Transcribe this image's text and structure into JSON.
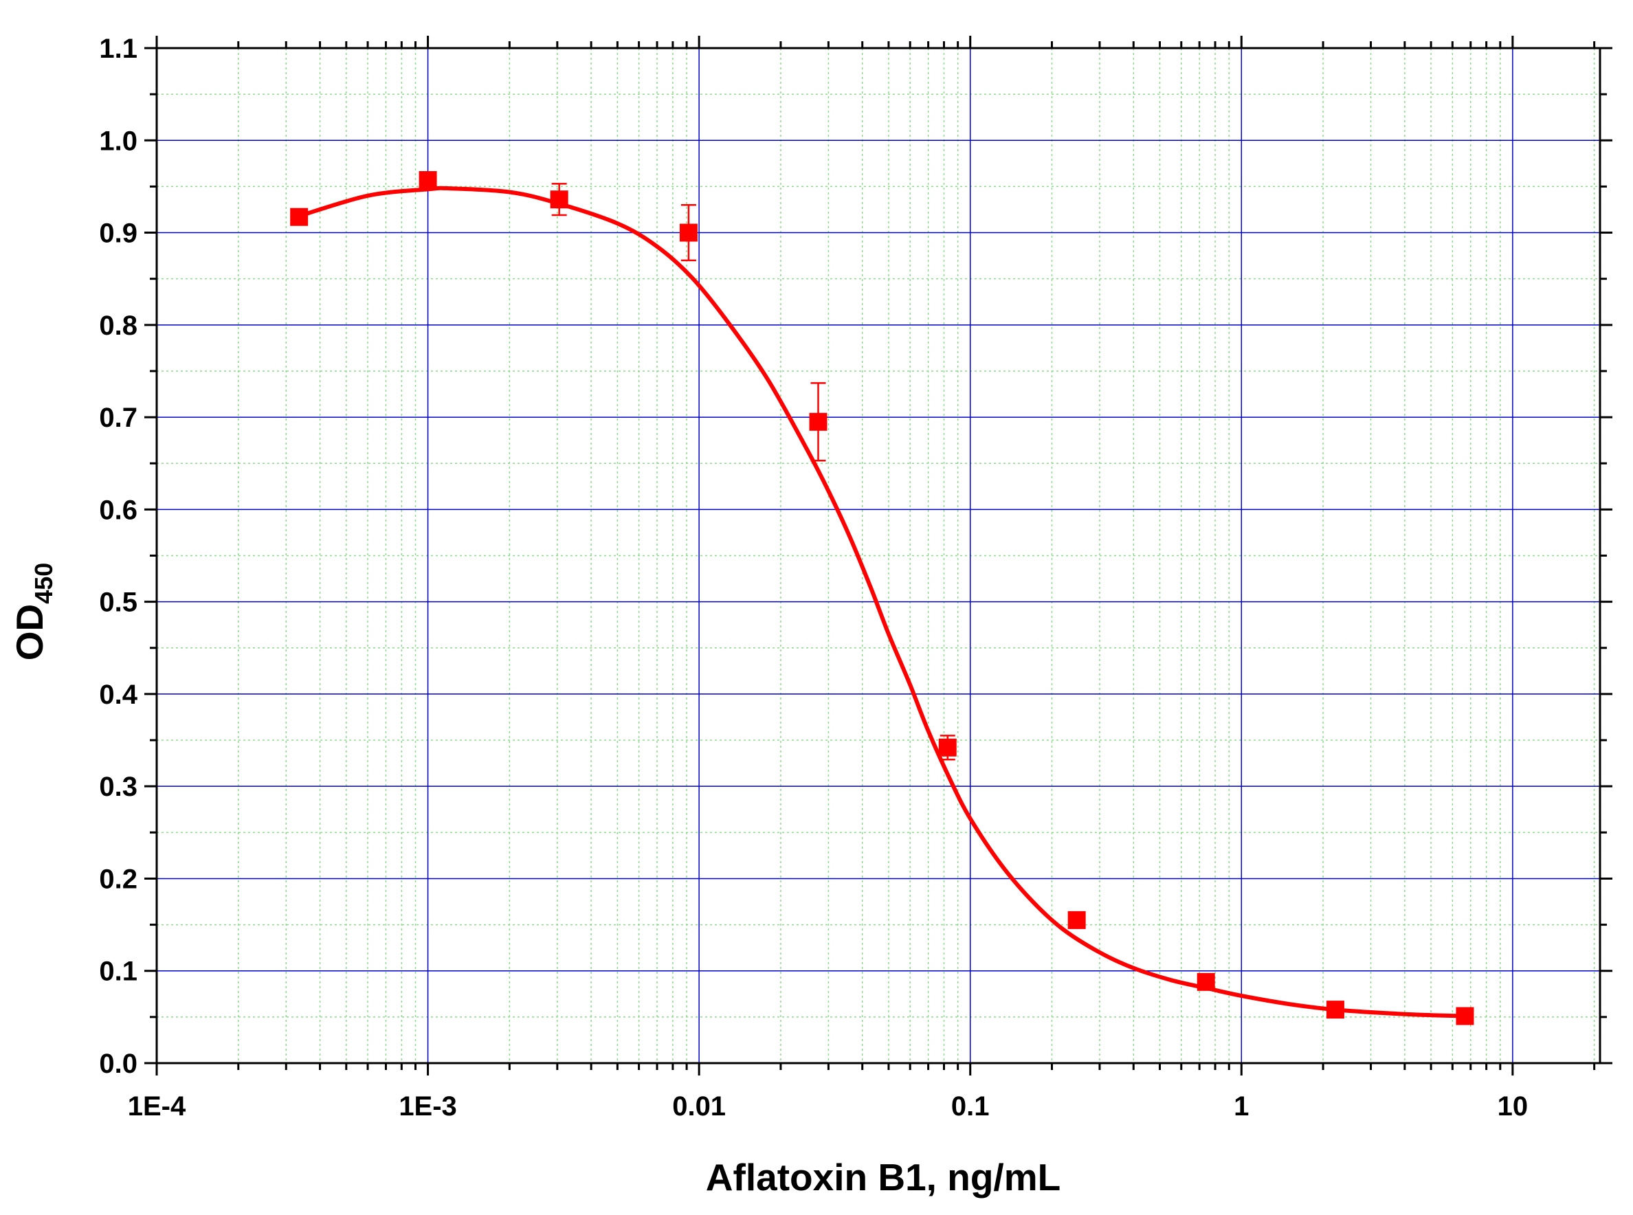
{
  "chart_data": {
    "type": "scatter",
    "xlabel": "Aflatoxin B1, ng/mL",
    "ylabel": "OD",
    "ylabel_subscript": "450",
    "x_scale": "log",
    "xlim": [
      0.0001,
      21
    ],
    "ylim": [
      0.0,
      1.1
    ],
    "x_major_ticks": [
      0.0001,
      0.001,
      0.01,
      0.1,
      1,
      10
    ],
    "x_tick_labels": [
      "1E-4",
      "1E-3",
      "0.01",
      "0.1",
      "1",
      "10"
    ],
    "y_major_ticks": [
      0.0,
      0.1,
      0.2,
      0.3,
      0.4,
      0.5,
      0.6,
      0.7,
      0.8,
      0.9,
      1.0,
      1.1
    ],
    "y_tick_labels": [
      "0.0",
      "0.1",
      "0.2",
      "0.3",
      "0.4",
      "0.5",
      "0.6",
      "0.7",
      "0.8",
      "0.9",
      "1.0",
      "1.1"
    ],
    "grid": true,
    "colors": {
      "points": "#ff0000",
      "fit_line": "#ff0000",
      "major_grid": "#0000cc",
      "minor_grid": "#88dd88",
      "axes": "#000000"
    },
    "series": [
      {
        "marker": "square",
        "x": [
          0.000335,
          0.001,
          0.00305,
          0.00915,
          0.0275,
          0.0825,
          0.247,
          0.74,
          2.22,
          6.67
        ],
        "y": [
          0.917,
          0.957,
          0.936,
          0.9,
          0.695,
          0.342,
          0.155,
          0.088,
          0.058,
          0.051
        ],
        "error": [
          0.0,
          0.0,
          0.017,
          0.03,
          0.042,
          0.013,
          0.0,
          0.0,
          0.0,
          0.0
        ]
      }
    ],
    "fit": {
      "type": "sigmoid",
      "x": [
        0.000335,
        0.0006,
        0.001,
        0.0012,
        0.002,
        0.003,
        0.005,
        0.007,
        0.0095,
        0.013,
        0.018,
        0.025,
        0.03,
        0.036,
        0.043,
        0.05,
        0.06,
        0.07,
        0.085,
        0.1,
        0.13,
        0.17,
        0.22,
        0.3,
        0.4,
        0.55,
        0.75,
        1.0,
        1.5,
        2.2,
        3.5,
        5.0,
        6.67
      ],
      "y": [
        0.918,
        0.94,
        0.947,
        0.948,
        0.944,
        0.932,
        0.91,
        0.885,
        0.85,
        0.8,
        0.74,
        0.665,
        0.62,
        0.57,
        0.515,
        0.465,
        0.41,
        0.36,
        0.305,
        0.265,
        0.215,
        0.175,
        0.145,
        0.12,
        0.103,
        0.09,
        0.081,
        0.073,
        0.064,
        0.058,
        0.054,
        0.052,
        0.051
      ]
    }
  }
}
